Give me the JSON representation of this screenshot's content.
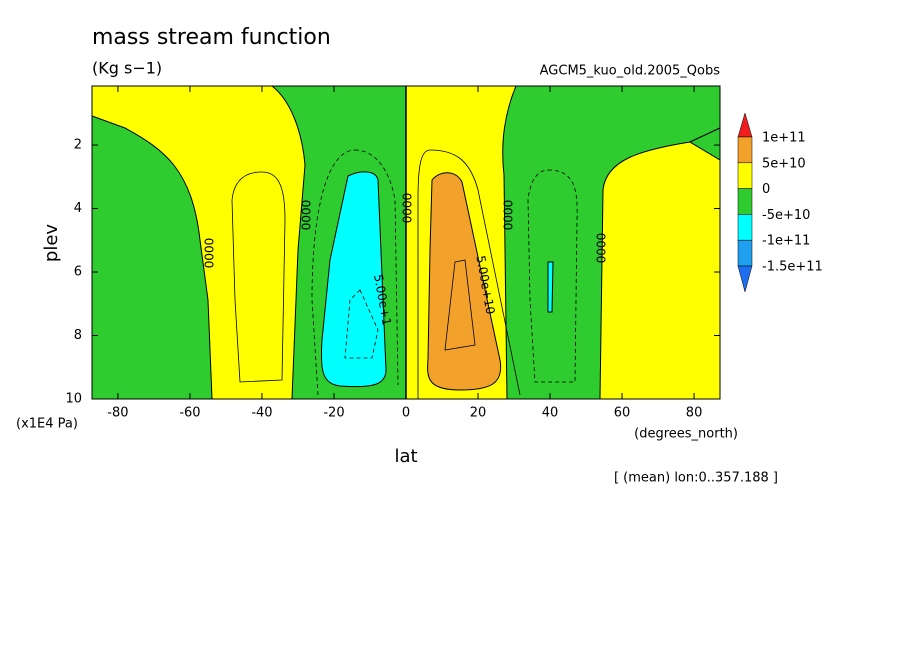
{
  "chart_data": {
    "type": "contour",
    "title": "mass stream function",
    "subtitle": "(Kg s−1)",
    "dataset": "AGCM5_kuo_old.2005_Qobs",
    "x_label": "lat",
    "x_unit": "(degrees_north)",
    "y_label": "plev",
    "y_unit": "(x1E4 Pa)",
    "note": "[ (mean) lon:0..357.188 ]",
    "xlim": [
      -87.2,
      87.2
    ],
    "xticks": [
      -80,
      -60,
      -40,
      -20,
      0,
      20,
      40,
      60,
      80
    ],
    "ylim": [
      10,
      0.14
    ],
    "yticks": [
      10,
      8,
      6,
      4,
      2
    ],
    "colorbar": {
      "levels": [
        {
          "value": 100000000000,
          "label": "1e+11"
        },
        {
          "value": 50000000000,
          "label": "5e+10"
        },
        0,
        {
          "value": -50000000000,
          "label": "-5e+10"
        },
        {
          "value": -100000000000,
          "label": "-1e+11"
        },
        {
          "value": -150000000000,
          "label": "-1.5e+11"
        }
      ],
      "colors": [
        "#f01e1e",
        "#f2a22a",
        "#ffff00",
        "#2fcc2f",
        "#00ffff",
        "#1fa0f0",
        "#1e6ef0"
      ]
    },
    "contour_labels": [
      "5.00e+10",
      "5.00e+1",
      "0000",
      "0000",
      "0000",
      "0000",
      "0000"
    ]
  }
}
